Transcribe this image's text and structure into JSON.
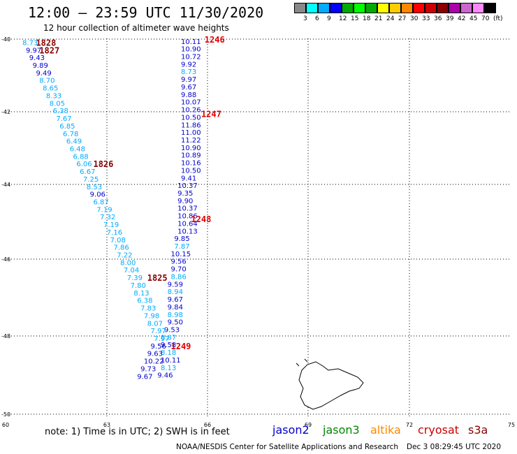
{
  "header": {
    "title": "12:00 – 23:59 UTC 11/30/2020",
    "subtitle": "12 hour collection of altimeter wave heights"
  },
  "colorbar": {
    "colors": [
      "#888888",
      "#00ffff",
      "#00aaff",
      "#0000ff",
      "#00aa00",
      "#00ff00",
      "#00aa00",
      "#ffff00",
      "#ffcc00",
      "#ff8800",
      "#ff0000",
      "#cc0000",
      "#880000",
      "#aa00aa",
      "#cc66cc",
      "#ff88ff",
      "#000000"
    ],
    "labels": [
      "3",
      "6",
      "9",
      "12",
      "15",
      "18",
      "21",
      "24",
      "27",
      "30",
      "33",
      "36",
      "39",
      "42",
      "45",
      "70",
      "(ft)"
    ]
  },
  "footer": {
    "note": "note:  1) Time is in UTC;  2) SWH is in feet",
    "legend": [
      {
        "name": "jason2",
        "color": "#0000cc"
      },
      {
        "name": "jason3",
        "color": "#008800"
      },
      {
        "name": "altika",
        "color": "#ff8800"
      },
      {
        "name": "cryosat",
        "color": "#cc0000"
      },
      {
        "name": "s3a",
        "color": "#880000"
      }
    ],
    "credit": "NOAA/NESDIS Center for Satellite Applications and Research",
    "stamp": "Dec  3 08:29:45 UTC 2020"
  },
  "chart_data": {
    "type": "scatter",
    "title": "12:00 – 23:59 UTC 11/30/2020",
    "subtitle": "12 hour collection of altimeter wave heights",
    "xlabel": "",
    "ylabel": "",
    "x_ticks": [
      "60",
      "63",
      "66",
      "69",
      "72",
      "75"
    ],
    "y_ticks": [
      "-40",
      "-42",
      "-44",
      "-46",
      "-48",
      "-50"
    ],
    "xlim": [
      60,
      75
    ],
    "ylim": [
      -50,
      -40
    ],
    "grid": true,
    "units": "ft",
    "series": [
      {
        "name": "cryosat",
        "color": "#0000cc",
        "points": [
          {
            "x": 65.2,
            "y": -40.07,
            "v": "10.11"
          },
          {
            "x": 65.2,
            "y": -40.27,
            "v": "10.90"
          },
          {
            "x": 65.2,
            "y": -40.47,
            "v": "10.72"
          },
          {
            "x": 65.2,
            "y": -40.67,
            "v": "9.92"
          },
          {
            "x": 65.2,
            "y": -40.87,
            "v": "8.73",
            "c": "#00aaff"
          },
          {
            "x": 65.2,
            "y": -41.07,
            "v": "9.97"
          },
          {
            "x": 65.2,
            "y": -41.27,
            "v": "9.67"
          },
          {
            "x": 65.2,
            "y": -41.47,
            "v": "9.88"
          },
          {
            "x": 65.2,
            "y": -41.67,
            "v": "10.07"
          },
          {
            "x": 65.2,
            "y": -41.87,
            "v": "10.26"
          },
          {
            "x": 65.2,
            "y": -42.07,
            "v": "10.50"
          },
          {
            "x": 65.2,
            "y": -42.27,
            "v": "11.86"
          },
          {
            "x": 65.2,
            "y": -42.47,
            "v": "11.00"
          },
          {
            "x": 65.2,
            "y": -42.67,
            "v": "11.22"
          },
          {
            "x": 65.2,
            "y": -42.87,
            "v": "10.90"
          },
          {
            "x": 65.2,
            "y": -43.07,
            "v": "10.89"
          },
          {
            "x": 65.2,
            "y": -43.27,
            "v": "10.16"
          },
          {
            "x": 65.2,
            "y": -43.47,
            "v": "10.50"
          },
          {
            "x": 65.2,
            "y": -43.67,
            "v": "9.41"
          },
          {
            "x": 65.1,
            "y": -43.87,
            "v": "10.37"
          },
          {
            "x": 65.1,
            "y": -44.07,
            "v": "9.35"
          },
          {
            "x": 65.1,
            "y": -44.27,
            "v": "9.90"
          },
          {
            "x": 65.1,
            "y": -44.47,
            "v": "10.37"
          },
          {
            "x": 65.1,
            "y": -44.67,
            "v": "10.86"
          },
          {
            "x": 65.1,
            "y": -44.87,
            "v": "10.64"
          },
          {
            "x": 65.1,
            "y": -45.07,
            "v": "10.13"
          },
          {
            "x": 65.0,
            "y": -45.27,
            "v": "9.85"
          },
          {
            "x": 65.0,
            "y": -45.47,
            "v": "7.87",
            "c": "#00aaff"
          },
          {
            "x": 64.9,
            "y": -45.67,
            "v": "10.15"
          },
          {
            "x": 64.9,
            "y": -45.87,
            "v": "9.56"
          },
          {
            "x": 64.9,
            "y": -46.07,
            "v": "9.70"
          },
          {
            "x": 64.9,
            "y": -46.27,
            "v": "8.86",
            "c": "#00aaff"
          },
          {
            "x": 64.8,
            "y": -46.47,
            "v": "9.59"
          },
          {
            "x": 64.8,
            "y": -46.67,
            "v": "8.94",
            "c": "#00aaff"
          },
          {
            "x": 64.8,
            "y": -46.87,
            "v": "9.67"
          },
          {
            "x": 64.8,
            "y": -47.07,
            "v": "9.84"
          },
          {
            "x": 64.8,
            "y": -47.27,
            "v": "8.98",
            "c": "#00aaff"
          },
          {
            "x": 64.8,
            "y": -47.47,
            "v": "9.50"
          },
          {
            "x": 64.7,
            "y": -47.67,
            "v": "9.53"
          },
          {
            "x": 64.6,
            "y": -47.87,
            "v": "8.87",
            "c": "#00aaff"
          },
          {
            "x": 64.6,
            "y": -48.07,
            "v": "9.58"
          },
          {
            "x": 64.6,
            "y": -48.27,
            "v": "8.18",
            "c": "#00aaff"
          },
          {
            "x": 64.6,
            "y": -48.47,
            "v": "10.11"
          },
          {
            "x": 64.6,
            "y": -48.67,
            "v": "8.13",
            "c": "#00aaff"
          },
          {
            "x": 64.5,
            "y": -48.87,
            "v": "9.46"
          }
        ]
      },
      {
        "name": "s3a",
        "color": "#00aaff",
        "points": [
          {
            "x": 60.5,
            "y": -40.1,
            "v": "8.73"
          },
          {
            "x": 60.6,
            "y": -40.3,
            "v": "9.97",
            "c": "#0000cc"
          },
          {
            "x": 60.7,
            "y": -40.5,
            "v": "9.43",
            "c": "#0000cc"
          },
          {
            "x": 60.8,
            "y": -40.7,
            "v": "9.89",
            "c": "#0000cc"
          },
          {
            "x": 60.9,
            "y": -40.9,
            "v": "9.49",
            "c": "#0000cc"
          },
          {
            "x": 61.0,
            "y": -41.1,
            "v": "8.70"
          },
          {
            "x": 61.1,
            "y": -41.3,
            "v": "8.65"
          },
          {
            "x": 61.2,
            "y": -41.5,
            "v": "8.33"
          },
          {
            "x": 61.3,
            "y": -41.7,
            "v": "8.05"
          },
          {
            "x": 61.4,
            "y": -41.9,
            "v": "6.38"
          },
          {
            "x": 61.5,
            "y": -42.1,
            "v": "7.67"
          },
          {
            "x": 61.6,
            "y": -42.3,
            "v": "6.85"
          },
          {
            "x": 61.7,
            "y": -42.5,
            "v": "6.78"
          },
          {
            "x": 61.8,
            "y": -42.7,
            "v": "6.49"
          },
          {
            "x": 61.9,
            "y": -42.9,
            "v": "6.48"
          },
          {
            "x": 62.0,
            "y": -43.1,
            "v": "6.88"
          },
          {
            "x": 62.1,
            "y": -43.3,
            "v": "6.06"
          },
          {
            "x": 62.2,
            "y": -43.5,
            "v": "6.67"
          },
          {
            "x": 62.3,
            "y": -43.7,
            "v": "7.25"
          },
          {
            "x": 62.4,
            "y": -43.9,
            "v": "8.53"
          },
          {
            "x": 62.5,
            "y": -44.1,
            "v": "9.06",
            "c": "#0000cc"
          },
          {
            "x": 62.6,
            "y": -44.3,
            "v": "6.87"
          },
          {
            "x": 62.7,
            "y": -44.5,
            "v": "7.19"
          },
          {
            "x": 62.8,
            "y": -44.7,
            "v": "7.32"
          },
          {
            "x": 62.9,
            "y": -44.9,
            "v": "7.19"
          },
          {
            "x": 63.0,
            "y": -45.1,
            "v": "7.16"
          },
          {
            "x": 63.1,
            "y": -45.3,
            "v": "7.08"
          },
          {
            "x": 63.2,
            "y": -45.5,
            "v": "7.86"
          },
          {
            "x": 63.3,
            "y": -45.7,
            "v": "7.22"
          },
          {
            "x": 63.4,
            "y": -45.9,
            "v": "8.00"
          },
          {
            "x": 63.5,
            "y": -46.1,
            "v": "7.04"
          },
          {
            "x": 63.6,
            "y": -46.3,
            "v": "7.39"
          },
          {
            "x": 63.7,
            "y": -46.5,
            "v": "7.80"
          },
          {
            "x": 63.8,
            "y": -46.7,
            "v": "8.13"
          },
          {
            "x": 63.9,
            "y": -46.9,
            "v": "6.38"
          },
          {
            "x": 64.0,
            "y": -47.1,
            "v": "7.83"
          },
          {
            "x": 64.1,
            "y": -47.3,
            "v": "7.98"
          },
          {
            "x": 64.2,
            "y": -47.5,
            "v": "8.07"
          },
          {
            "x": 64.3,
            "y": -47.7,
            "v": "7.97"
          },
          {
            "x": 64.4,
            "y": -47.9,
            "v": "7.97"
          },
          {
            "x": 64.3,
            "y": -48.1,
            "v": "9.56",
            "c": "#0000cc"
          },
          {
            "x": 64.2,
            "y": -48.3,
            "v": "9.63",
            "c": "#0000cc"
          },
          {
            "x": 64.1,
            "y": -48.5,
            "v": "10.22",
            "c": "#0000cc"
          },
          {
            "x": 64.0,
            "y": -48.7,
            "v": "9.73",
            "c": "#0000cc"
          },
          {
            "x": 63.9,
            "y": -48.9,
            "v": "9.67",
            "c": "#0000cc"
          }
        ]
      }
    ],
    "time_labels": [
      {
        "text": "1246",
        "x": 65.9,
        "y": -40.02,
        "color": "#dd0000"
      },
      {
        "text": "1247",
        "x": 65.8,
        "y": -41.98,
        "color": "#dd0000"
      },
      {
        "text": "1248",
        "x": 65.5,
        "y": -44.75,
        "color": "#dd0000"
      },
      {
        "text": "1249",
        "x": 64.9,
        "y": -48.1,
        "color": "#dd0000"
      },
      {
        "text": "1828",
        "x": 60.9,
        "y": -40.1,
        "color": "#880000"
      },
      {
        "text": "1827",
        "x": 61.0,
        "y": -40.3,
        "color": "#880000"
      },
      {
        "text": "1826",
        "x": 62.6,
        "y": -43.3,
        "color": "#880000"
      },
      {
        "text": "1825",
        "x": 64.2,
        "y": -46.3,
        "color": "#880000"
      }
    ]
  }
}
